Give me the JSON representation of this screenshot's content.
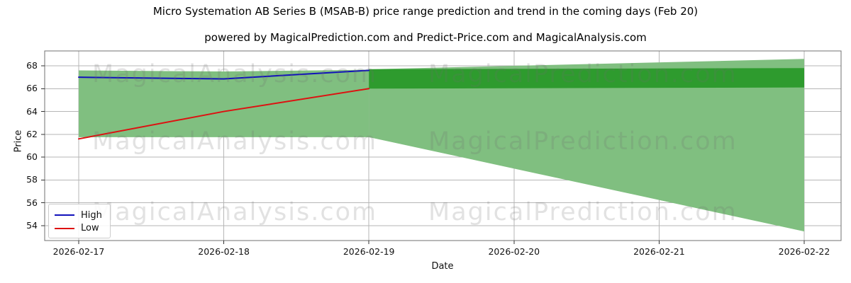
{
  "title": "Micro Systemation AB Series B (MSAB-B) price range prediction and trend in the coming days (Feb 20)",
  "subtitle": "powered by MagicalPrediction.com and Predict-Price.com and MagicalAnalysis.com",
  "watermark": {
    "left_text": "MagicalAnalysis.com",
    "right_text": "MagicalPrediction.com",
    "rows": 3
  },
  "chart_data": {
    "type": "line",
    "title": "Micro Systemation AB Series B (MSAB-B) price range prediction and trend in the coming days (Feb 20)",
    "subtitle": "powered by MagicalPrediction.com and Predict-Price.com and MagicalAnalysis.com",
    "xlabel": "Date",
    "ylabel": "Price",
    "x": [
      "2026-02-17",
      "2026-02-18",
      "2026-02-19",
      "2026-02-20",
      "2026-02-21",
      "2026-02-22"
    ],
    "yticks": [
      54,
      56,
      58,
      60,
      62,
      64,
      66,
      68
    ],
    "ylim": [
      52.7,
      69.3
    ],
    "grid": true,
    "legend_position": "lower left",
    "colors": {
      "high_line": "#1111bb",
      "low_line": "#dd1111",
      "range_band": "#80bf80",
      "core_band": "#2e9b2e",
      "gridline": "#b6b6b6",
      "spine": "#707070"
    },
    "series": [
      {
        "name": "High",
        "color": "#1111bb",
        "x_idx": [
          0,
          1,
          2
        ],
        "values": [
          67.0,
          66.85,
          67.6
        ]
      },
      {
        "name": "Low",
        "color": "#dd1111",
        "x_idx": [
          0,
          1,
          2
        ],
        "values": [
          61.6,
          64.0,
          66.0
        ]
      }
    ],
    "bands": [
      {
        "name": "history-high-low-range",
        "color": "#80bf80",
        "x_idx": [
          0,
          1,
          2
        ],
        "top": [
          67.6,
          67.5,
          67.65
        ],
        "bottom": [
          61.75,
          61.75,
          61.75
        ]
      },
      {
        "name": "forecast-outer-range",
        "color": "#80bf80",
        "x_idx": [
          2,
          5
        ],
        "top": [
          67.7,
          68.6
        ],
        "bottom": [
          61.75,
          53.5
        ]
      },
      {
        "name": "forecast-core-range",
        "color": "#2e9b2e",
        "x_idx": [
          2,
          5
        ],
        "top": [
          67.7,
          67.8
        ],
        "bottom": [
          66.0,
          66.1
        ]
      }
    ]
  }
}
